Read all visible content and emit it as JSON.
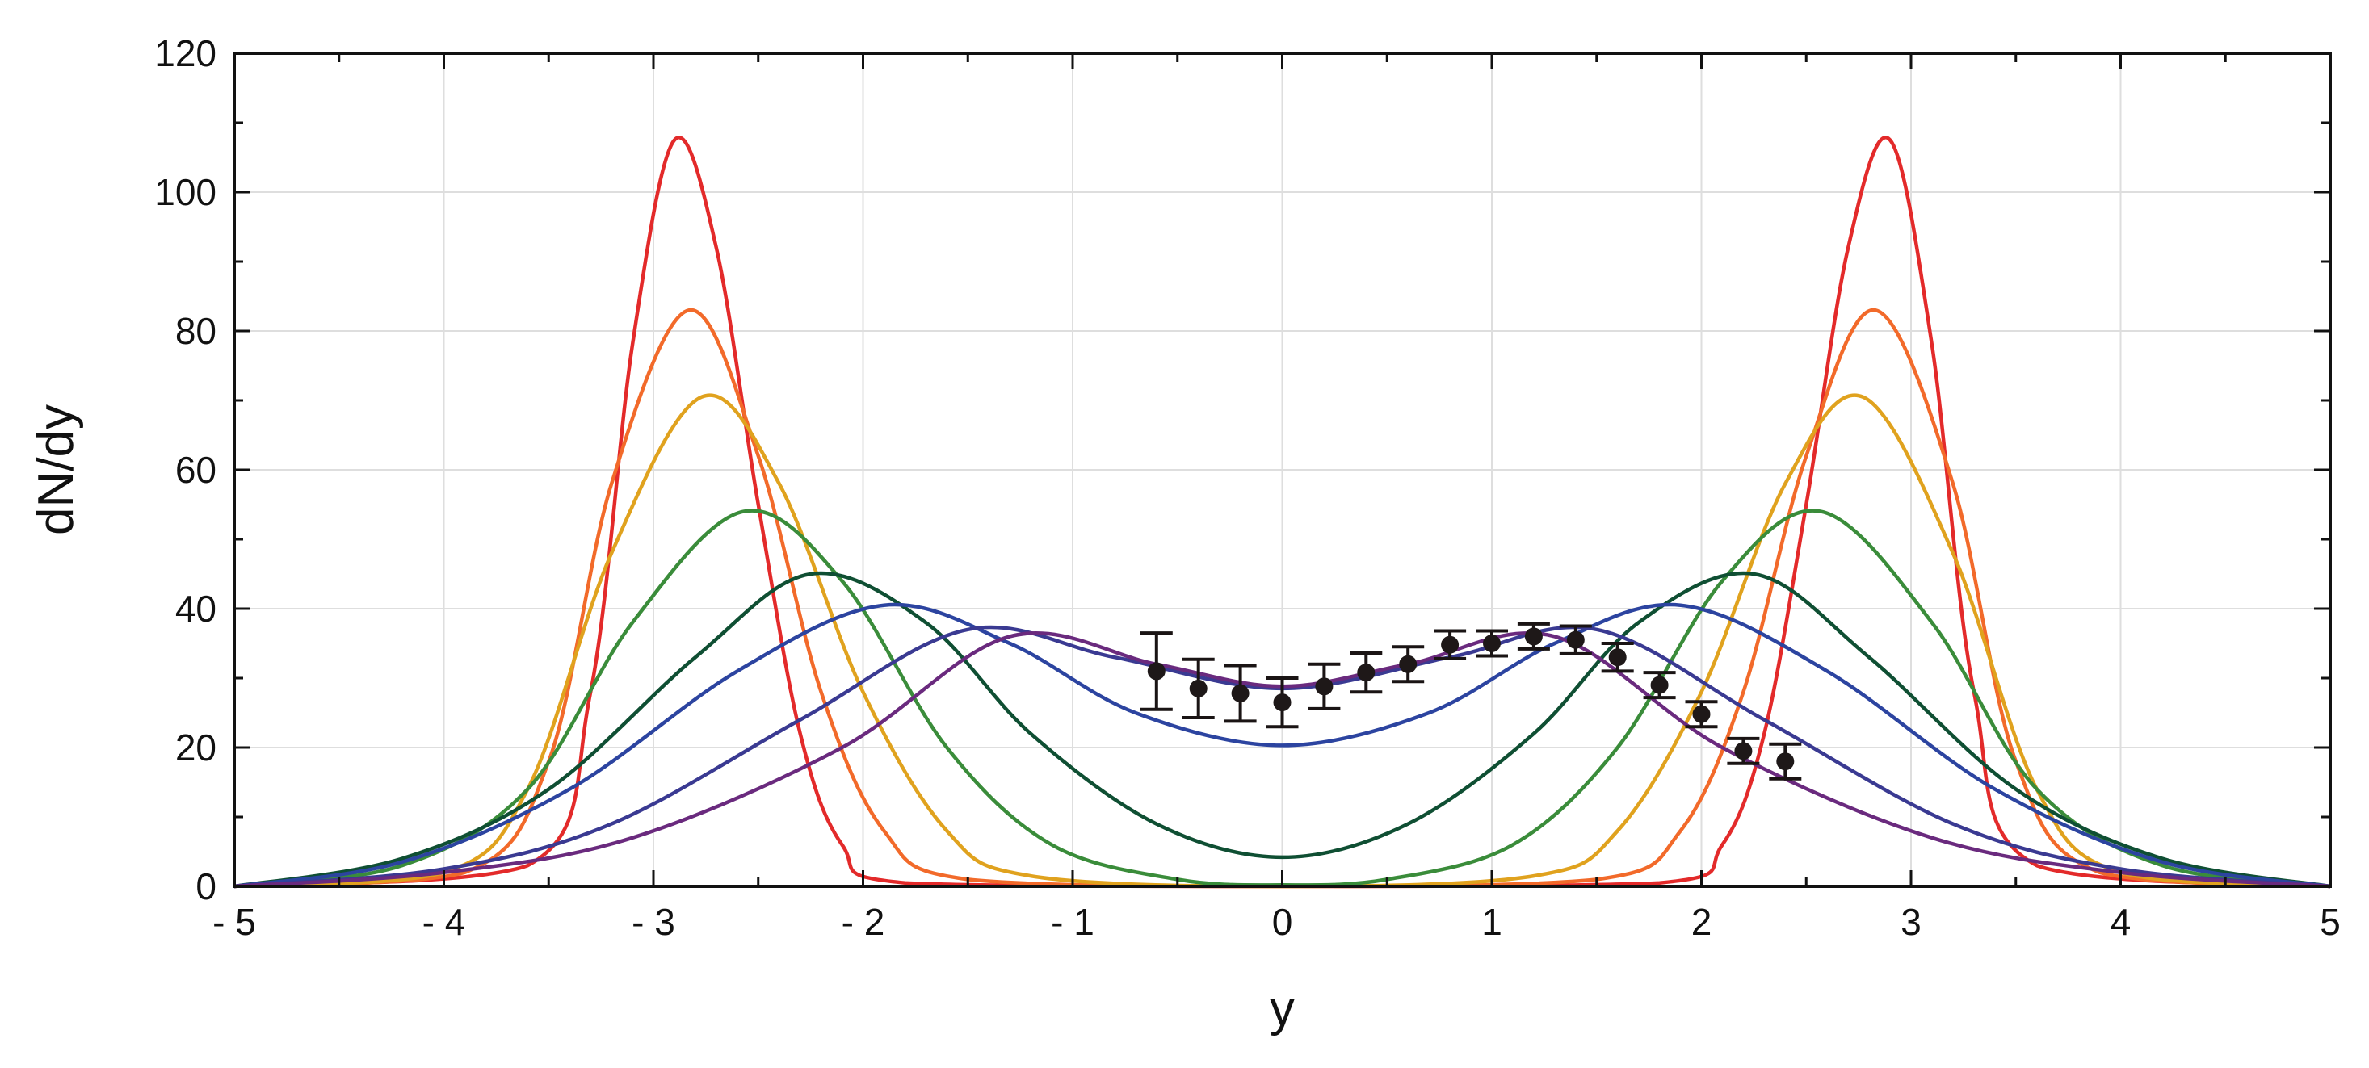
{
  "chart_data": {
    "type": "line",
    "title": "",
    "xlabel": "y",
    "ylabel": "dN/dy",
    "xlim": [
      -5,
      5
    ],
    "ylim": [
      0,
      120
    ],
    "grid": true,
    "x_ticks": [
      -5,
      -4,
      -3,
      -2,
      -1,
      0,
      1,
      2,
      3,
      4,
      5
    ],
    "x_tick_labels": [
      "- 5",
      "- 4",
      "- 3",
      "- 2",
      "- 1",
      "0",
      "1",
      "2",
      "3",
      "4",
      "5"
    ],
    "y_ticks": [
      0,
      20,
      40,
      60,
      80,
      100,
      120
    ],
    "y_tick_labels": [
      "0",
      "20",
      "40",
      "60",
      "80",
      "100",
      "120"
    ],
    "series": [
      {
        "color": "#e32a2a",
        "peak_y": 2.9,
        "peak_value": 107.5,
        "center_value": 0,
        "x": [
          -5,
          -3.6,
          -3.3,
          -3.1,
          -2.9,
          -2.7,
          -2.5,
          -2.3,
          -2.1,
          -1.8,
          0,
          1.8,
          2.1,
          2.3,
          2.5,
          2.7,
          2.9,
          3.1,
          3.3,
          3.6,
          5
        ],
        "values": [
          0,
          3,
          28,
          78,
          107.5,
          92,
          55,
          22,
          6,
          0.5,
          0,
          0.5,
          6,
          22,
          55,
          92,
          107.5,
          78,
          28,
          3,
          0
        ]
      },
      {
        "color": "#f26a2a",
        "peak_y": 2.83,
        "peak_value": 83,
        "center_value": 0,
        "x": [
          -5,
          -3.9,
          -3.5,
          -3.2,
          -2.83,
          -2.5,
          -2.2,
          -1.9,
          -1.5,
          0,
          1.5,
          1.9,
          2.2,
          2.5,
          2.83,
          3.2,
          3.5,
          3.9,
          5
        ],
        "values": [
          0,
          2,
          18,
          58,
          83,
          62,
          28,
          8,
          1,
          0,
          1,
          8,
          28,
          62,
          83,
          58,
          18,
          2,
          0
        ]
      },
      {
        "color": "#e0a21e",
        "peak_y": 2.77,
        "peak_value": 70.5,
        "center_value": 0,
        "x": [
          -5,
          -4,
          -3.6,
          -3.2,
          -2.77,
          -2.4,
          -2,
          -1.6,
          -1.2,
          0,
          1.2,
          1.6,
          2,
          2.4,
          2.77,
          3.2,
          3.6,
          4,
          5
        ],
        "values": [
          0,
          2,
          14,
          48,
          70.5,
          58,
          28,
          8,
          1.5,
          0,
          1.5,
          8,
          28,
          58,
          70.5,
          48,
          14,
          2,
          0
        ]
      },
      {
        "color": "#3a8c3a",
        "peak_y": 2.57,
        "peak_value": 54,
        "center_value": 0.2,
        "x": [
          -5,
          -4.2,
          -3.6,
          -3.1,
          -2.57,
          -2.1,
          -1.6,
          -1.1,
          -0.5,
          0,
          0.5,
          1.1,
          1.6,
          2.1,
          2.57,
          3.1,
          3.6,
          4.2,
          5
        ],
        "values": [
          0,
          3,
          14,
          38,
          54,
          44,
          20,
          6,
          1,
          0.2,
          1,
          6,
          20,
          44,
          54,
          38,
          14,
          3,
          0
        ]
      },
      {
        "color": "#0f4f33",
        "peak_y": 2.25,
        "peak_value": 45,
        "center_value": 4.2,
        "x": [
          -5,
          -4.2,
          -3.5,
          -2.8,
          -2.25,
          -1.7,
          -1.2,
          -0.6,
          0,
          0.6,
          1.2,
          1.7,
          2.25,
          2.8,
          3.5,
          4.2,
          5
        ],
        "values": [
          0,
          4,
          14,
          33,
          45,
          38,
          22,
          9,
          4.2,
          9,
          22,
          38,
          45,
          33,
          14,
          4,
          0
        ]
      },
      {
        "color": "#2c44a0",
        "peak_y": 1.9,
        "peak_value": 40.5,
        "center_value": 20.3,
        "x": [
          -5,
          -4.2,
          -3.4,
          -2.6,
          -1.9,
          -1.3,
          -0.7,
          0,
          0.7,
          1.3,
          1.9,
          2.6,
          3.4,
          4.2,
          5
        ],
        "values": [
          0,
          3.5,
          14,
          31,
          40.5,
          35,
          25,
          20.3,
          25,
          35,
          40.5,
          31,
          14,
          3.5,
          0
        ]
      },
      {
        "color": "#3a3a92",
        "peak_y": 1.5,
        "peak_value": 37,
        "center_value": 28.5,
        "x": [
          -5,
          -4,
          -3.2,
          -2.3,
          -1.5,
          -0.8,
          0,
          0.8,
          1.5,
          2.3,
          3.2,
          4,
          5
        ],
        "values": [
          0,
          2.5,
          9,
          24,
          37,
          33,
          28.5,
          33,
          37,
          24,
          9,
          2.5,
          0
        ]
      },
      {
        "color": "#6a2a7e",
        "peak_y": 1.3,
        "peak_value": 36,
        "center_value": 28.8,
        "x": [
          -5,
          -4,
          -3.1,
          -2.1,
          -1.3,
          -0.6,
          0,
          0.6,
          1.3,
          2.1,
          3.1,
          4,
          5
        ],
        "values": [
          0,
          2,
          7,
          20,
          36,
          32,
          28.8,
          32,
          36,
          20,
          7,
          2,
          0
        ]
      }
    ],
    "data_points": {
      "x": [
        -0.6,
        -0.4,
        -0.2,
        0,
        0.2,
        0.4,
        0.6,
        0.8,
        1.0,
        1.2,
        1.4,
        1.6,
        1.8,
        2.0,
        2.2,
        2.4
      ],
      "y": [
        31,
        28.5,
        27.8,
        26.5,
        28.8,
        30.8,
        32,
        34.8,
        35,
        36,
        35.5,
        33,
        29,
        24.8,
        19.5,
        18
      ],
      "err": [
        5.5,
        4.2,
        4,
        3.5,
        3.2,
        2.8,
        2.5,
        2,
        1.8,
        1.8,
        2,
        2,
        1.8,
        1.8,
        1.8,
        2.5
      ]
    }
  }
}
